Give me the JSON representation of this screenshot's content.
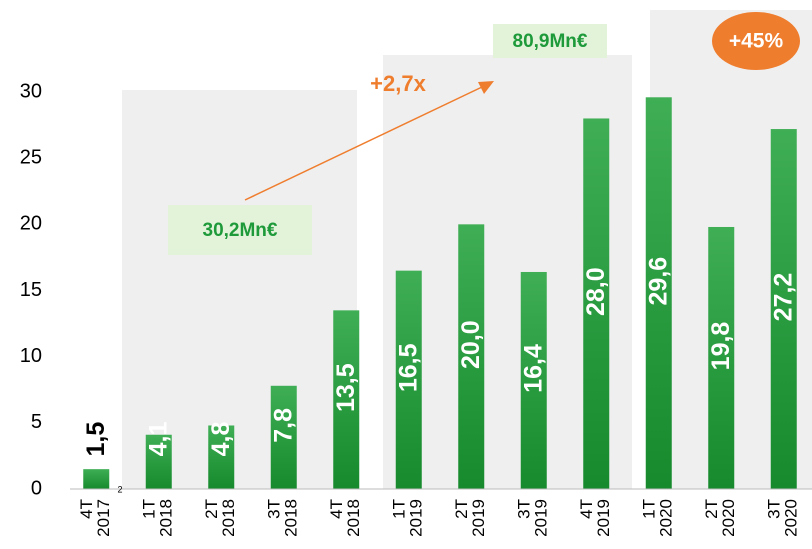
{
  "chart_data": {
    "type": "bar",
    "categories": [
      "4T 2017",
      "1T 2018",
      "2T 2018",
      "3T 2018",
      "4T 2018",
      "1T 2019",
      "2T 2019",
      "3T 2019",
      "4T 2019",
      "1T 2020",
      "2T 2020",
      "3T 2020"
    ],
    "values": [
      1.5,
      4.1,
      4.8,
      7.8,
      13.5,
      16.5,
      20.0,
      16.4,
      28.0,
      29.6,
      19.8,
      27.2
    ],
    "value_labels": [
      "1,5",
      "4,1",
      "4,8",
      "7,8",
      "13,5",
      "16,5",
      "20,0",
      "16,4",
      "28,0",
      "29,6",
      "19,8",
      "27,2"
    ],
    "color": "#239b3c",
    "ylim": [
      0,
      30
    ],
    "yticks": [
      0,
      5,
      10,
      15,
      20,
      25,
      30
    ],
    "grid": false,
    "annotations": {
      "total_2018": "30,2Mn€",
      "total_2019": "80,9Mn€",
      "growth_2019": "+2,7x",
      "growth_2020": "+45%",
      "footnote": "2"
    }
  }
}
